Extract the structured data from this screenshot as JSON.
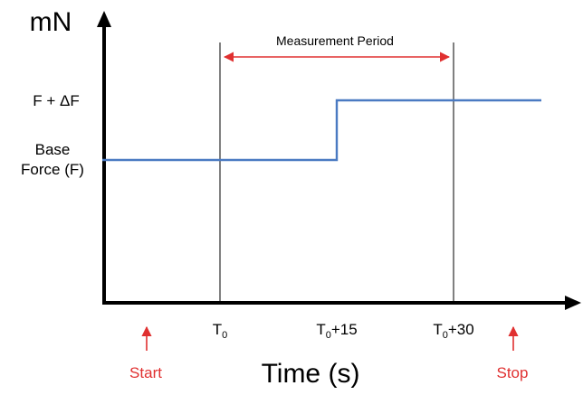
{
  "y_axis": {
    "unit": "mN"
  },
  "x_axis": {
    "title": "Time (s)"
  },
  "levels": {
    "high_label": "F + ΔF",
    "base_label_line1": "Base",
    "base_label_line2": "Force (F)"
  },
  "ticks": [
    {
      "main": "T",
      "sub": "0",
      "suffix": ""
    },
    {
      "main": "T",
      "sub": "0",
      "suffix": "+15"
    },
    {
      "main": "T",
      "sub": "0",
      "suffix": "+30"
    }
  ],
  "measurement": {
    "label": "Measurement Period"
  },
  "markers": {
    "start": "Start",
    "stop": "Stop"
  },
  "colors": {
    "signal": "#4a7ac2",
    "annotation": "#e03030",
    "axis": "#000000"
  }
}
